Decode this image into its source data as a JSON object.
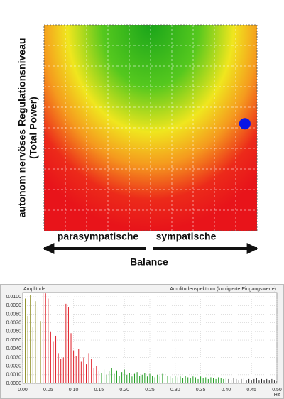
{
  "chart_data": [
    {
      "type": "scatter",
      "ylabel_lines": [
        "autonom nervöses Regulationsniveau",
        "(Total Power)"
      ],
      "left_label": "parasympatische",
      "right_label": "sympatische",
      "xlabel": "Balance",
      "xlim": [
        0,
        10
      ],
      "ylim": [
        0,
        10
      ],
      "grid": true,
      "x": [
        9.43
      ],
      "values": [
        5.2
      ],
      "color": "#0a14e6"
    },
    {
      "type": "stem",
      "ylabel": "Amplitude",
      "title": "Amplitudenspektrum (korrigierte Eingangswerte)",
      "xlabel": "Hz",
      "xlim": [
        0,
        0.5
      ],
      "ylim": [
        0,
        0.0105
      ],
      "xticks": [
        {
          "value": 0,
          "label": "0.00"
        },
        0.05,
        {
          "value": 0.1,
          "label": "0.10"
        },
        0.15,
        {
          "value": 0.2,
          "label": "0.20"
        },
        0.25,
        {
          "value": 0.3,
          "label": "0.30"
        },
        0.35,
        {
          "value": 0.4,
          "label": "0.40"
        },
        0.45,
        {
          "value": 0.5,
          "label": "0.50"
        }
      ],
      "yticks": [
        {
          "value": 0,
          "label": "0.0000"
        },
        {
          "value": 0.001,
          "label": "0.0010"
        },
        {
          "value": 0.002,
          "label": "0.0020"
        },
        {
          "value": 0.003,
          "label": "0.0030"
        },
        {
          "value": 0.004,
          "label": "0.0040"
        },
        {
          "value": 0.005,
          "label": "0.0050"
        },
        {
          "value": 0.006,
          "label": "0.0060"
        },
        {
          "value": 0.007,
          "label": "0.0070"
        },
        {
          "value": 0.008,
          "label": "0.0080"
        },
        {
          "value": 0.009,
          "label": "0.0090"
        },
        {
          "value": 0.01,
          "label": "0.0100"
        }
      ],
      "grid": true,
      "series": [
        {
          "color": "#8a8a1e",
          "x": [
            0,
            0.005,
            0.01,
            0.015,
            0.02,
            0.025,
            0.03,
            0.035
          ],
          "values": [
            0.0062,
            0.0098,
            0.0078,
            0.0102,
            0.0065,
            0.0095,
            0.0088,
            0.0072
          ]
        },
        {
          "color": "#e0202a",
          "x": [
            0.04,
            0.045,
            0.05,
            0.055,
            0.06,
            0.065,
            0.07,
            0.075,
            0.08,
            0.085,
            0.09,
            0.095,
            0.1,
            0.105,
            0.11,
            0.115,
            0.12,
            0.125,
            0.13,
            0.135,
            0.14,
            0.145,
            0.15
          ],
          "values": [
            0.0105,
            0.0104,
            0.0098,
            0.006,
            0.0048,
            0.0055,
            0.0035,
            0.0028,
            0.003,
            0.0092,
            0.0088,
            0.0058,
            0.0038,
            0.0032,
            0.004,
            0.0025,
            0.003,
            0.0022,
            0.0035,
            0.0028,
            0.0018,
            0.002,
            0.0015
          ]
        },
        {
          "color": "#1e9a1e",
          "x": [
            0.155,
            0.16,
            0.165,
            0.17,
            0.175,
            0.18,
            0.185,
            0.19,
            0.195,
            0.2,
            0.205,
            0.21,
            0.215,
            0.22,
            0.225,
            0.23,
            0.235,
            0.24,
            0.245,
            0.25,
            0.255,
            0.26,
            0.265,
            0.27,
            0.275,
            0.28,
            0.285,
            0.29,
            0.295,
            0.3,
            0.305,
            0.31,
            0.315,
            0.32,
            0.325,
            0.33,
            0.335,
            0.34,
            0.345,
            0.35,
            0.355,
            0.36,
            0.365,
            0.37,
            0.375,
            0.38,
            0.385,
            0.39,
            0.395,
            0.4
          ],
          "values": [
            0.0012,
            0.0016,
            0.001,
            0.0014,
            0.0018,
            0.0011,
            0.0015,
            0.0009,
            0.0013,
            0.0016,
            0.001,
            0.0012,
            0.0008,
            0.0011,
            0.0013,
            0.0009,
            0.001,
            0.0012,
            0.0008,
            0.0011,
            0.0009,
            0.0007,
            0.001,
            0.0008,
            0.0011,
            0.0007,
            0.0009,
            0.0008,
            0.0006,
            0.0009,
            0.0007,
            0.0008,
            0.0006,
            0.0009,
            0.0007,
            0.0006,
            0.0008,
            0.0007,
            0.0005,
            0.0008,
            0.0006,
            0.0007,
            0.0005,
            0.0007,
            0.0006,
            0.0005,
            0.0007,
            0.0006,
            0.0005,
            0.0006
          ]
        },
        {
          "color": "#222222",
          "x": [
            0.405,
            0.41,
            0.415,
            0.42,
            0.425,
            0.43,
            0.435,
            0.44,
            0.445,
            0.45,
            0.455,
            0.46,
            0.465,
            0.47,
            0.475,
            0.48,
            0.485,
            0.49,
            0.495,
            0.5
          ],
          "values": [
            0.0005,
            0.0004,
            0.0006,
            0.0005,
            0.0004,
            0.0005,
            0.0006,
            0.0004,
            0.0005,
            0.0004,
            0.0005,
            0.0006,
            0.0004,
            0.0005,
            0.0004,
            0.0005,
            0.0004,
            0.0005,
            0.0004,
            0.0003
          ]
        }
      ]
    }
  ]
}
